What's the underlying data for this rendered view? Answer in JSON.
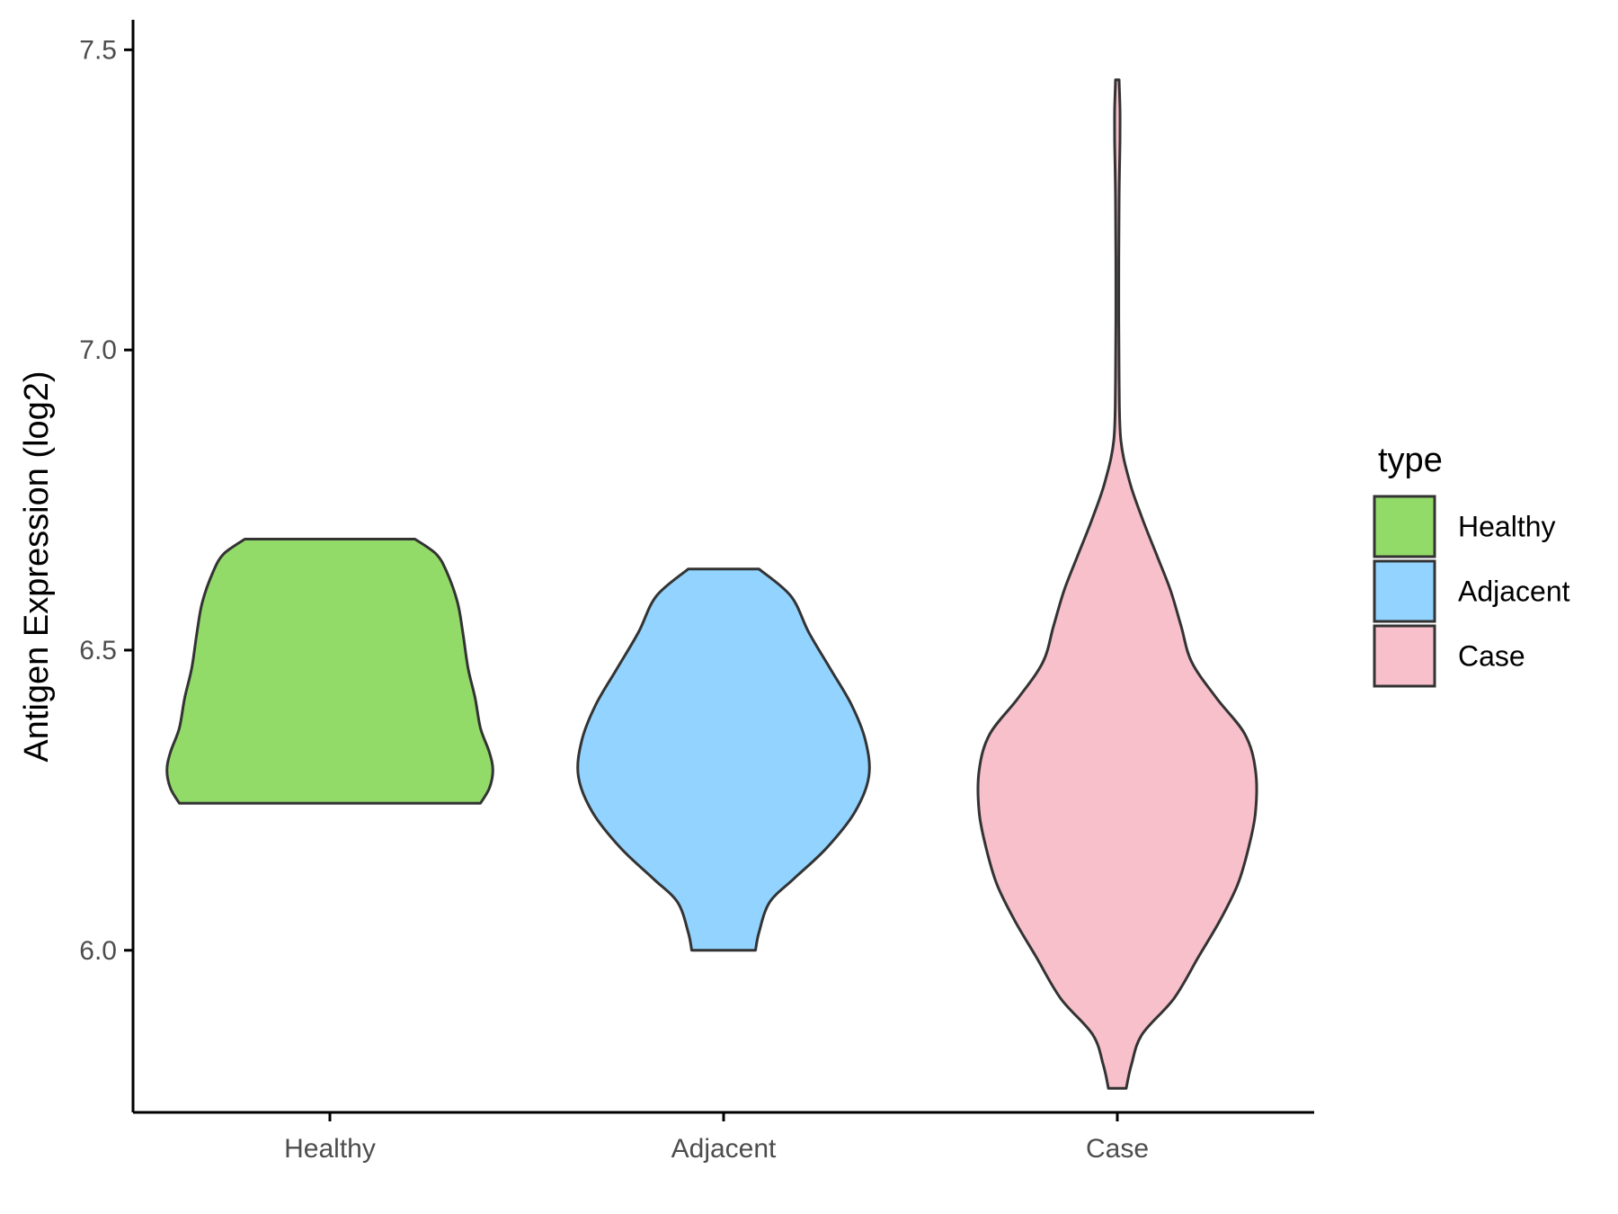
{
  "chart_data": {
    "type": "violin",
    "title": "",
    "xlabel": "",
    "ylabel": "Antigen Expression (log2)",
    "ylim": [
      5.73,
      7.55
    ],
    "yticks": [
      "6.0",
      "6.5",
      "7.0",
      "7.5"
    ],
    "grid": false,
    "legend": {
      "title": "type",
      "position": "right",
      "entries": [
        "Healthy",
        "Adjacent",
        "Case"
      ]
    },
    "categories": [
      "Healthy",
      "Adjacent",
      "Case"
    ],
    "series": [
      {
        "name": "Healthy",
        "color": "#93DB69",
        "min": 6.245,
        "max": 6.685,
        "density": [
          [
            6.245,
            0.85
          ],
          [
            6.27,
            0.9
          ],
          [
            6.3,
            0.92
          ],
          [
            6.33,
            0.9
          ],
          [
            6.37,
            0.85
          ],
          [
            6.42,
            0.82
          ],
          [
            6.47,
            0.78
          ],
          [
            6.53,
            0.75
          ],
          [
            6.58,
            0.72
          ],
          [
            6.63,
            0.66
          ],
          [
            6.66,
            0.6
          ],
          [
            6.685,
            0.48
          ]
        ]
      },
      {
        "name": "Adjacent",
        "color": "#92D3FF",
        "min": 6.0,
        "max": 6.635,
        "density": [
          [
            6.0,
            0.18
          ],
          [
            6.03,
            0.2
          ],
          [
            6.08,
            0.26
          ],
          [
            6.12,
            0.4
          ],
          [
            6.17,
            0.58
          ],
          [
            6.23,
            0.74
          ],
          [
            6.29,
            0.82
          ],
          [
            6.35,
            0.8
          ],
          [
            6.41,
            0.72
          ],
          [
            6.47,
            0.6
          ],
          [
            6.53,
            0.48
          ],
          [
            6.59,
            0.38
          ],
          [
            6.635,
            0.2
          ]
        ]
      },
      {
        "name": "Case",
        "color": "#F7C0CB",
        "min": 5.77,
        "max": 7.45,
        "density": [
          [
            5.77,
            0.05
          ],
          [
            5.81,
            0.08
          ],
          [
            5.86,
            0.14
          ],
          [
            5.92,
            0.32
          ],
          [
            5.99,
            0.46
          ],
          [
            6.05,
            0.58
          ],
          [
            6.11,
            0.68
          ],
          [
            6.17,
            0.74
          ],
          [
            6.23,
            0.78
          ],
          [
            6.3,
            0.78
          ],
          [
            6.36,
            0.72
          ],
          [
            6.42,
            0.56
          ],
          [
            6.48,
            0.42
          ],
          [
            6.54,
            0.36
          ],
          [
            6.6,
            0.3
          ],
          [
            6.66,
            0.22
          ],
          [
            6.72,
            0.14
          ],
          [
            6.78,
            0.07
          ],
          [
            6.85,
            0.02
          ],
          [
            6.95,
            0.01
          ],
          [
            7.1,
            0.008
          ],
          [
            7.25,
            0.01
          ],
          [
            7.35,
            0.015
          ],
          [
            7.4,
            0.015
          ],
          [
            7.45,
            0.01
          ]
        ]
      }
    ]
  }
}
